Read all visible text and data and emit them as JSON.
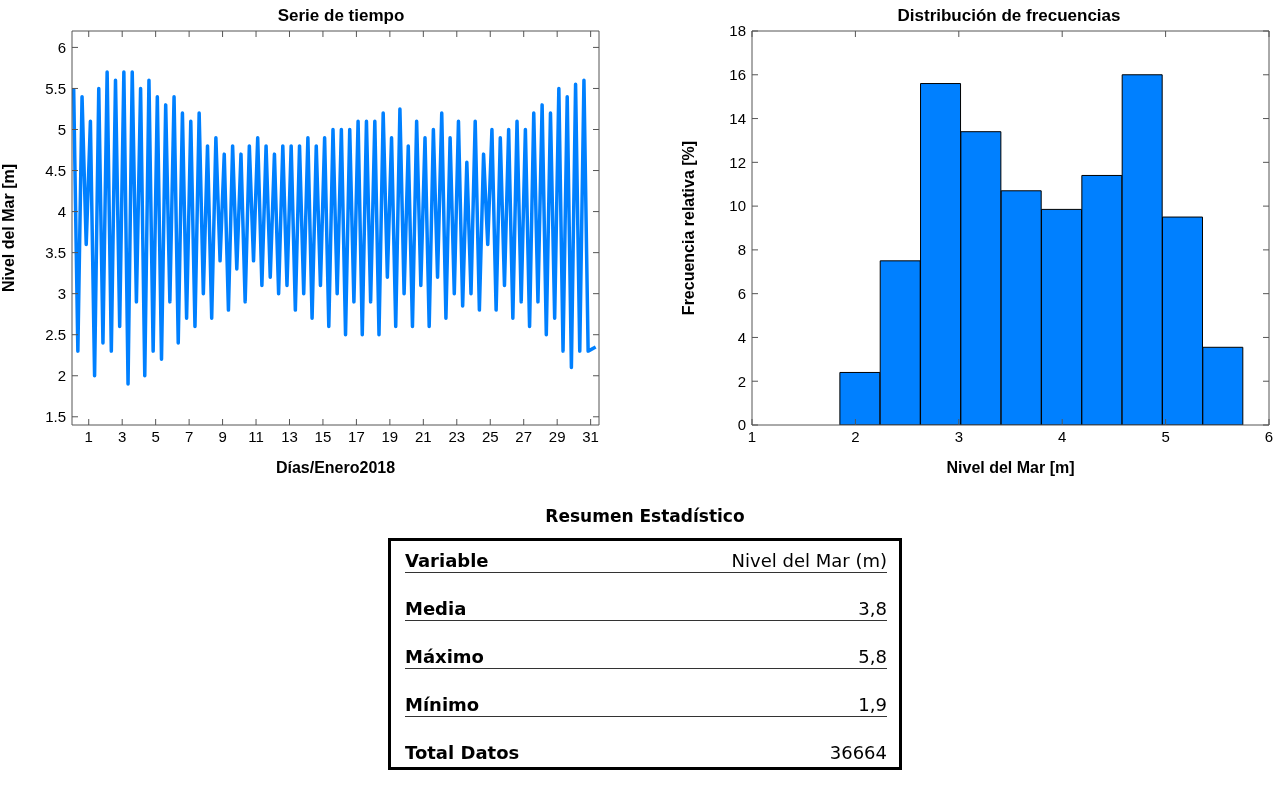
{
  "chart_data": [
    {
      "type": "line",
      "title": "Serie de tiempo",
      "xlabel": "Días/Enero2018",
      "ylabel": "Nivel del Mar [m]",
      "xlim": [
        0,
        31.5
      ],
      "xticks": [
        1,
        3,
        5,
        7,
        9,
        11,
        13,
        15,
        17,
        19,
        21,
        23,
        25,
        27,
        29,
        31
      ],
      "ylim": [
        1.4,
        6.2
      ],
      "yticks": [
        1.5,
        2,
        2.5,
        3,
        3.5,
        4,
        4.5,
        5,
        5.5,
        6
      ],
      "x": [
        0.1,
        0.35,
        0.6,
        0.85,
        1.1,
        1.35,
        1.6,
        1.85,
        2.1,
        2.35,
        2.6,
        2.85,
        3.1,
        3.35,
        3.6,
        3.85,
        4.1,
        4.35,
        4.6,
        4.85,
        5.1,
        5.35,
        5.6,
        5.85,
        6.1,
        6.35,
        6.6,
        6.85,
        7.1,
        7.35,
        7.6,
        7.85,
        8.1,
        8.35,
        8.6,
        8.85,
        9.1,
        9.35,
        9.6,
        9.85,
        10.1,
        10.35,
        10.6,
        10.85,
        11.1,
        11.35,
        11.6,
        11.85,
        12.1,
        12.35,
        12.6,
        12.85,
        13.1,
        13.35,
        13.6,
        13.85,
        14.1,
        14.35,
        14.6,
        14.85,
        15.1,
        15.35,
        15.6,
        15.85,
        16.1,
        16.35,
        16.6,
        16.85,
        17.1,
        17.35,
        17.6,
        17.85,
        18.1,
        18.35,
        18.6,
        18.85,
        19.1,
        19.35,
        19.6,
        19.85,
        20.1,
        20.35,
        20.6,
        20.85,
        21.1,
        21.35,
        21.6,
        21.85,
        22.1,
        22.35,
        22.6,
        22.85,
        23.1,
        23.35,
        23.6,
        23.85,
        24.1,
        24.35,
        24.6,
        24.85,
        25.1,
        25.35,
        25.6,
        25.85,
        26.1,
        26.35,
        26.6,
        26.85,
        27.1,
        27.35,
        27.6,
        27.85,
        28.1,
        28.35,
        28.6,
        28.85,
        29.1,
        29.35,
        29.6,
        29.85,
        30.1,
        30.35,
        30.6,
        30.85,
        31.3
      ],
      "series": [
        {
          "color": "#0080ff",
          "values": [
            5.5,
            2.3,
            5.4,
            3.6,
            5.1,
            2.0,
            5.5,
            2.4,
            5.7,
            2.3,
            5.6,
            2.6,
            5.7,
            1.9,
            5.7,
            2.9,
            5.5,
            2.0,
            5.6,
            2.3,
            5.4,
            2.2,
            5.3,
            2.9,
            5.4,
            2.4,
            5.2,
            2.7,
            5.1,
            2.6,
            5.2,
            3.0,
            4.8,
            2.7,
            4.9,
            3.4,
            4.7,
            2.8,
            4.8,
            3.3,
            4.7,
            2.9,
            4.8,
            3.4,
            4.9,
            3.1,
            4.8,
            3.2,
            4.7,
            3.0,
            4.8,
            3.1,
            4.8,
            2.8,
            4.8,
            3.0,
            4.9,
            2.7,
            4.8,
            3.1,
            4.9,
            2.6,
            5.0,
            3.0,
            5.0,
            2.5,
            5.0,
            2.9,
            5.1,
            2.5,
            5.1,
            2.9,
            5.1,
            2.5,
            5.2,
            3.2,
            4.9,
            2.6,
            5.25,
            3.0,
            4.8,
            2.6,
            5.1,
            3.1,
            4.9,
            2.6,
            5.0,
            3.2,
            5.2,
            2.7,
            4.9,
            3.0,
            5.1,
            2.85,
            4.6,
            3.0,
            5.1,
            2.8,
            4.7,
            3.6,
            5.0,
            2.8,
            4.9,
            3.1,
            5.0,
            2.7,
            5.1,
            2.9,
            5.0,
            2.6,
            5.2,
            2.9,
            5.3,
            2.5,
            5.2,
            2.7,
            5.5,
            2.3,
            5.4,
            2.1,
            5.55,
            2.3,
            5.6,
            2.3,
            2.35
          ]
        }
      ]
    },
    {
      "type": "histogram",
      "title": "Distribución de frecuencias",
      "xlabel": "Nivel del Mar [m]",
      "ylabel": "Frecuencia relativa [%]",
      "color": "#0080ff",
      "xlim": [
        1,
        6
      ],
      "xticks": [
        1,
        2,
        3,
        4,
        5,
        6
      ],
      "ylim": [
        0,
        18
      ],
      "yticks": [
        0,
        2,
        4,
        6,
        8,
        10,
        12,
        14,
        16,
        18
      ],
      "bins": [
        1.85,
        2.24,
        2.63,
        3.02,
        3.41,
        3.8,
        4.19,
        4.58,
        4.97,
        5.36,
        5.75
      ],
      "values": [
        2.4,
        7.5,
        15.6,
        13.4,
        10.7,
        9.85,
        11.4,
        16.0,
        9.5,
        3.55
      ]
    },
    {
      "type": "other",
      "title": "Resumen Estadístico",
      "annotations": [
        "Variable",
        "Nivel del Mar (m)",
        "Media",
        "3,8",
        "Máximo",
        "5,8",
        "Mínimo",
        "1,9",
        "Total Datos",
        "36664"
      ]
    }
  ]
}
